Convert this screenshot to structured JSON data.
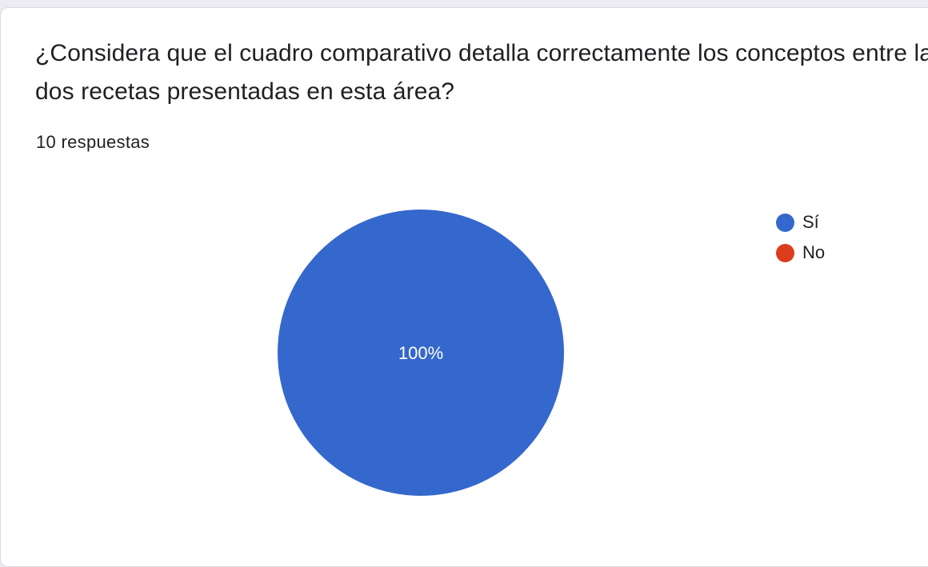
{
  "question": {
    "title": "¿Considera que el cuadro comparativo detalla correctamente  los conceptos entre las dos recetas presentadas en esta área?",
    "response_count": "10 respuestas"
  },
  "chart_data": {
    "type": "pie",
    "categories": [
      "Sí",
      "No"
    ],
    "values": [
      100,
      0
    ],
    "slice_labels": [
      "100%",
      ""
    ],
    "colors": [
      "#3568cc",
      "#dc3d1c"
    ],
    "legend_position": "right"
  }
}
